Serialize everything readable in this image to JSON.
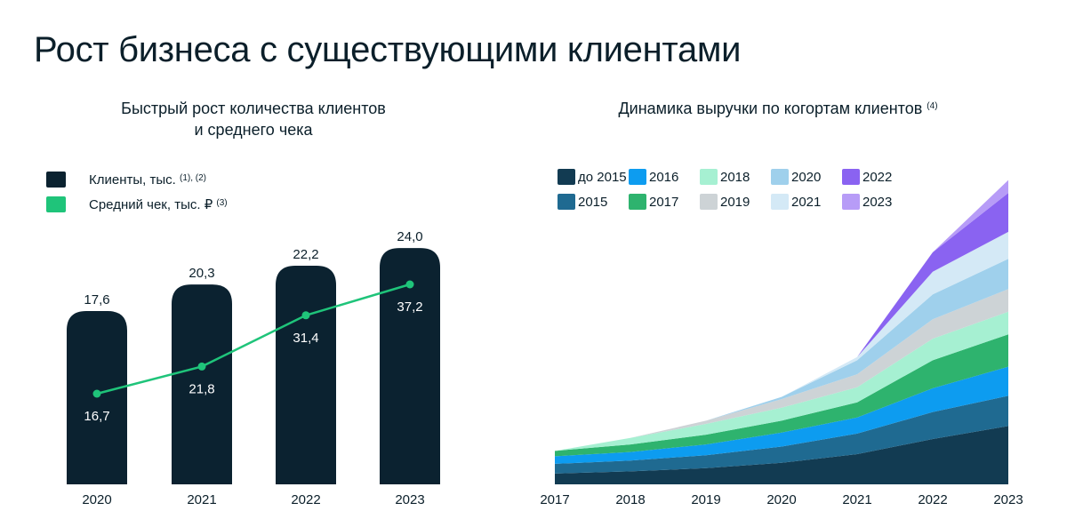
{
  "title": "Рост бизнеса с существующими клиентами",
  "left": {
    "subtitle_line1": "Быстрый рост количества клиентов",
    "subtitle_line2": "и среднего чека",
    "legend": [
      {
        "label": "Клиенты, тыс.",
        "sup": "(1), (2)",
        "color": "#0b2230"
      },
      {
        "label": "Средний чек, тыс. ₽",
        "sup": "(3)",
        "color": "#1fc47a"
      }
    ]
  },
  "right": {
    "subtitle": "Динамика выручки по когортам клиентов",
    "subtitle_sup": "(4)"
  },
  "chart_data": [
    {
      "type": "bar",
      "title": "Быстрый рост количества клиентов и среднего чека",
      "categories": [
        "2020",
        "2021",
        "2022",
        "2023"
      ],
      "series": [
        {
          "name": "Клиенты, тыс.",
          "kind": "bar",
          "color": "#0b2230",
          "values": [
            17.6,
            20.3,
            22.2,
            24.0
          ],
          "labels": [
            "17,6",
            "20,3",
            "22,2",
            "24,0"
          ]
        },
        {
          "name": "Средний чек, тыс. ₽",
          "kind": "line",
          "color": "#1fc47a",
          "values": [
            16.7,
            21.8,
            31.4,
            37.2
          ],
          "labels": [
            "16,7",
            "21,8",
            "31,4",
            "37,2"
          ]
        }
      ]
    },
    {
      "type": "area",
      "stacked": true,
      "title": "Динамика выручки по когортам клиентов",
      "x": [
        "2017",
        "2018",
        "2019",
        "2020",
        "2021",
        "2022",
        "2023"
      ],
      "series": [
        {
          "name": "до 2015",
          "color": "#123b52",
          "values": [
            1.0,
            1.2,
            1.5,
            2.0,
            2.8,
            4.2,
            5.4
          ]
        },
        {
          "name": "2015",
          "color": "#1f6a91",
          "values": [
            0.9,
            1.0,
            1.2,
            1.5,
            1.9,
            2.5,
            2.8
          ]
        },
        {
          "name": "2016",
          "color": "#0d9cf0",
          "values": [
            0.7,
            0.8,
            1.0,
            1.3,
            1.5,
            2.2,
            2.7
          ]
        },
        {
          "name": "2017",
          "color": "#2eb36e",
          "values": [
            0.5,
            0.7,
            0.9,
            1.1,
            1.4,
            2.6,
            3.0
          ]
        },
        {
          "name": "2018",
          "color": "#a6f0d2",
          "values": [
            0.0,
            0.6,
            1.0,
            1.2,
            1.4,
            2.0,
            2.1
          ]
        },
        {
          "name": "2019",
          "color": "#cdd3d6",
          "values": [
            0.0,
            0.0,
            0.3,
            0.8,
            1.2,
            1.8,
            2.1
          ]
        },
        {
          "name": "2020",
          "color": "#9fd0ec",
          "values": [
            0.0,
            0.0,
            0.0,
            0.2,
            1.3,
            2.3,
            2.8
          ]
        },
        {
          "name": "2021",
          "color": "#d4e9f6",
          "values": [
            0.0,
            0.0,
            0.0,
            0.0,
            0.3,
            2.1,
            2.5
          ]
        },
        {
          "name": "2022",
          "color": "#8a63f1",
          "values": [
            0.0,
            0.0,
            0.0,
            0.0,
            0.0,
            1.8,
            3.6
          ]
        },
        {
          "name": "2023",
          "color": "#b79cf7",
          "values": [
            0.0,
            0.0,
            0.0,
            0.0,
            0.0,
            0.0,
            1.2
          ]
        }
      ]
    }
  ]
}
